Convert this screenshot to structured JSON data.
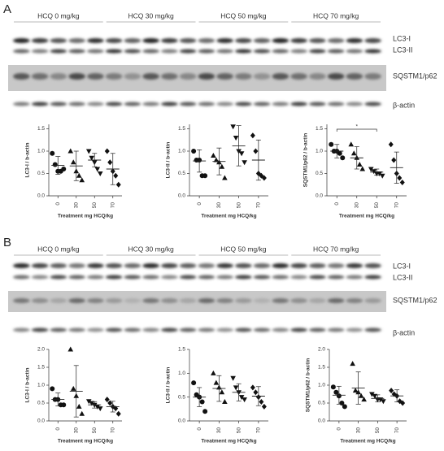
{
  "panels": [
    {
      "label": "A",
      "groups": [
        "HCQ 0 mg/kg",
        "HCQ 30 mg/kg",
        "HCQ 50 mg/kg",
        "HCQ 70 mg/kg"
      ],
      "blot_labels": [
        "LC3-I",
        "LC3-II",
        "SQSTM1/p62",
        "β-actin"
      ]
    },
    {
      "label": "B",
      "groups": [
        "HCQ 0 mg/kg",
        "HCQ 30 mg/kg",
        "HCQ 50 mg/kg",
        "HCQ 70 mg/kg"
      ],
      "blot_labels": [
        "LC3-I",
        "LC3-II",
        "SQSTM1/p62",
        "β-actin"
      ]
    }
  ],
  "chart_data": [
    {
      "type": "scatter",
      "ylabel": "LC3-I / b-actin",
      "xlabel": "Treatment mg HCQ/kg",
      "categories": [
        "0",
        "30",
        "50",
        "70"
      ],
      "points": [
        [
          0.95,
          0.7,
          0.55,
          0.55,
          0.6
        ],
        [
          1.0,
          0.75,
          0.55,
          0.45,
          0.35
        ],
        [
          1.0,
          0.85,
          0.75,
          0.6,
          0.5
        ],
        [
          1.0,
          0.75,
          0.55,
          0.45,
          0.25
        ]
      ],
      "means": [
        0.68,
        0.67,
        0.8,
        0.6
      ],
      "sd": [
        0.2,
        0.33,
        0.15,
        0.35
      ],
      "ylim": [
        0,
        1.6
      ],
      "yticks": [
        {
          "value": 0,
          "label": "0.0"
        },
        {
          "value": 0.5,
          "label": "0.5"
        },
        {
          "value": 1,
          "label": "1.0"
        },
        {
          "value": 1.5,
          "label": "1.5"
        }
      ]
    },
    {
      "type": "scatter",
      "ylabel": "LC3-II / b-actin",
      "xlabel": "Treatment mg HCQ/kg",
      "categories": [
        "0",
        "30",
        "50",
        "70"
      ],
      "points": [
        [
          1.0,
          0.8,
          0.8,
          0.45,
          0.45
        ],
        [
          0.9,
          0.8,
          0.75,
          0.65,
          0.4
        ],
        [
          1.55,
          1.3,
          1.0,
          0.95,
          0.75
        ],
        [
          1.35,
          1.0,
          0.5,
          0.45,
          0.4
        ]
      ],
      "means": [
        0.78,
        0.77,
        1.12,
        0.8
      ],
      "sd": [
        0.25,
        0.3,
        0.45,
        0.45
      ],
      "ylim": [
        0,
        1.6
      ],
      "yticks": [
        {
          "value": 0,
          "label": "0.0"
        },
        {
          "value": 0.5,
          "label": "0.5"
        },
        {
          "value": 1,
          "label": "1.0"
        },
        {
          "value": 1.5,
          "label": "1.5"
        }
      ]
    },
    {
      "type": "scatter",
      "ylabel": "SQSTM1/p62 / b-actin",
      "xlabel": "Treatment mg HCQ/kg",
      "categories": [
        "0",
        "30",
        "50",
        "70"
      ],
      "annotation": "*",
      "points": [
        [
          1.15,
          1.0,
          1.0,
          0.95,
          0.85
        ],
        [
          1.15,
          0.95,
          0.85,
          0.7,
          0.6
        ],
        [
          0.6,
          0.55,
          0.5,
          0.5,
          0.45
        ],
        [
          1.15,
          0.8,
          0.5,
          0.4,
          0.3
        ]
      ],
      "means": [
        1.0,
        0.85,
        0.53,
        0.63
      ],
      "sd": [
        0.15,
        0.25,
        0.07,
        0.35
      ],
      "ylim": [
        0,
        1.6
      ],
      "yticks": [
        {
          "value": 0,
          "label": "0.0"
        },
        {
          "value": 0.5,
          "label": "0.5"
        },
        {
          "value": 1,
          "label": "1.0"
        },
        {
          "value": 1.5,
          "label": "1.5"
        }
      ]
    },
    {
      "type": "scatter",
      "ylabel": "LC3-I / b-actin",
      "xlabel": "Treatment mg HCQ/kg",
      "categories": [
        "0",
        "30",
        "50",
        "70"
      ],
      "points": [
        [
          0.9,
          0.6,
          0.6,
          0.45,
          0.45
        ],
        [
          2.0,
          0.9,
          0.7,
          0.4,
          0.2
        ],
        [
          0.55,
          0.5,
          0.45,
          0.4,
          0.35
        ],
        [
          0.6,
          0.5,
          0.4,
          0.35,
          0.2
        ]
      ],
      "means": [
        0.6,
        0.83,
        0.45,
        0.4
      ],
      "sd": [
        0.18,
        0.72,
        0.09,
        0.15
      ],
      "ylim": [
        0,
        2.0
      ],
      "yticks": [
        {
          "value": 0,
          "label": "0.0"
        },
        {
          "value": 0.5,
          "label": "0.5"
        },
        {
          "value": 1,
          "label": "1.0"
        },
        {
          "value": 1.5,
          "label": "1.5"
        },
        {
          "value": 2,
          "label": "2.0"
        }
      ]
    },
    {
      "type": "scatter",
      "ylabel": "LC3-II / b-actin",
      "xlabel": "Treatment mg HCQ/kg",
      "categories": [
        "0",
        "30",
        "50",
        "70"
      ],
      "points": [
        [
          0.8,
          0.55,
          0.5,
          0.4,
          0.2
        ],
        [
          1.0,
          0.8,
          0.7,
          0.6,
          0.4
        ],
        [
          0.9,
          0.7,
          0.6,
          0.5,
          0.45
        ],
        [
          0.7,
          0.6,
          0.5,
          0.4,
          0.3
        ]
      ],
      "means": [
        0.5,
        0.68,
        0.6,
        0.52
      ],
      "sd": [
        0.2,
        0.27,
        0.18,
        0.2
      ],
      "ylim": [
        0,
        1.5
      ],
      "yticks": [
        {
          "value": 0,
          "label": "0.0"
        },
        {
          "value": 0.5,
          "label": "0.5"
        },
        {
          "value": 1,
          "label": "1.0"
        },
        {
          "value": 1.5,
          "label": "1.5"
        }
      ]
    },
    {
      "type": "scatter",
      "ylabel": "SQSTM1/p62 / b-actin",
      "xlabel": "Treatment mg HCQ/kg",
      "categories": [
        "0",
        "30",
        "50",
        "70"
      ],
      "points": [
        [
          0.95,
          0.8,
          0.7,
          0.5,
          0.4
        ],
        [
          1.6,
          0.85,
          0.8,
          0.7,
          0.6
        ],
        [
          0.75,
          0.7,
          0.6,
          0.6,
          0.55
        ],
        [
          0.85,
          0.75,
          0.7,
          0.55,
          0.5
        ]
      ],
      "means": [
        0.72,
        0.92,
        0.63,
        0.7
      ],
      "sd": [
        0.25,
        0.45,
        0.1,
        0.17
      ],
      "ylim": [
        0,
        2.0
      ],
      "yticks": [
        {
          "value": 0,
          "label": "0.0"
        },
        {
          "value": 0.5,
          "label": "0.5"
        },
        {
          "value": 1,
          "label": "1.0"
        },
        {
          "value": 1.5,
          "label": "1.5"
        },
        {
          "value": 2,
          "label": "2.0"
        }
      ]
    }
  ]
}
